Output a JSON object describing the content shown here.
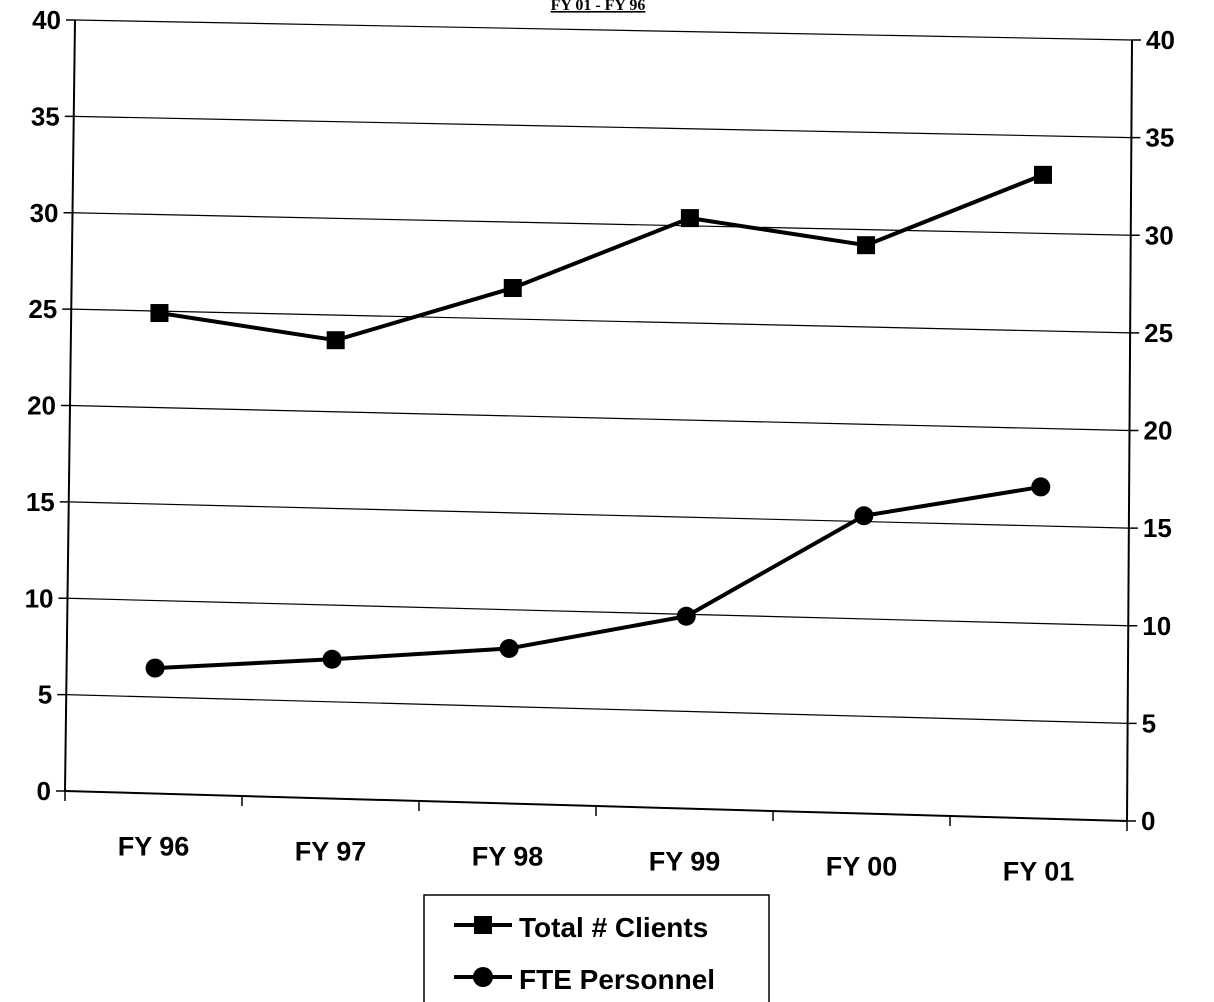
{
  "chart_data": {
    "type": "line",
    "title": "",
    "subtitle": "FY 01 - FY 96",
    "xlabel": "",
    "ylabel": "",
    "categories": [
      "FY 96",
      "FY 97",
      "FY 98",
      "FY 99",
      "FY 00",
      "FY 01"
    ],
    "series": [
      {
        "name": "Total # Clients",
        "marker": "square",
        "values": [
          24.9,
          23.7,
          26.6,
          30.4,
          29.2,
          33.0
        ]
      },
      {
        "name": "FTE Personnel",
        "marker": "circle",
        "values": [
          6.5,
          7.2,
          8.0,
          9.9,
          15.3,
          17.0
        ]
      }
    ],
    "ylim": [
      0,
      40
    ],
    "yticks": [
      0,
      5,
      10,
      15,
      20,
      25,
      30,
      35,
      40
    ],
    "y_axis_left": true,
    "y_axis_right": true,
    "grid": true,
    "legend_position": "bottom-center",
    "line_color": "#000000"
  }
}
